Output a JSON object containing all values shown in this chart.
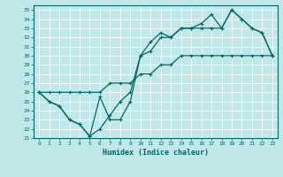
{
  "xlabel": "Humidex (Indice chaleur)",
  "bg_color": "#c0e8e8",
  "line_color": "#006868",
  "grid_color": "#a0d0d0",
  "xlim": [
    -0.5,
    23.5
  ],
  "ylim": [
    21,
    35.5
  ],
  "yticks": [
    21,
    22,
    23,
    24,
    25,
    26,
    27,
    28,
    29,
    30,
    31,
    32,
    33,
    34,
    35
  ],
  "xticks": [
    0,
    1,
    2,
    3,
    4,
    5,
    6,
    7,
    8,
    9,
    10,
    11,
    12,
    13,
    14,
    15,
    16,
    17,
    18,
    19,
    20,
    21,
    22,
    23
  ],
  "line1_x": [
    0,
    1,
    2,
    3,
    4,
    5,
    6,
    7,
    8,
    9,
    10,
    11,
    12,
    13,
    14,
    15,
    16,
    17,
    18,
    19,
    20,
    21,
    22,
    23
  ],
  "line1_y": [
    26,
    26,
    26,
    26,
    26,
    26,
    26,
    27,
    27,
    27,
    28,
    28,
    29,
    29,
    30,
    30,
    30,
    30,
    30,
    30,
    30,
    30,
    30,
    30
  ],
  "line2_x": [
    0,
    1,
    2,
    3,
    4,
    5,
    6,
    7,
    8,
    9,
    10,
    11,
    12,
    13,
    14,
    15,
    16,
    17,
    18,
    19,
    20,
    21,
    22,
    23
  ],
  "line2_y": [
    26,
    25,
    24.5,
    23,
    22.5,
    21.2,
    22,
    23.5,
    25,
    26,
    30,
    30.5,
    32,
    32,
    33,
    33,
    33,
    33,
    33,
    35,
    34,
    33,
    32.5,
    30
  ],
  "line3_x": [
    0,
    1,
    2,
    3,
    4,
    5,
    6,
    7,
    8,
    9,
    10,
    11,
    12,
    13,
    14,
    15,
    16,
    17,
    18,
    19,
    20,
    21,
    22,
    23
  ],
  "line3_y": [
    26,
    25,
    24.5,
    23,
    22.5,
    21.2,
    25.5,
    23,
    23,
    25,
    30,
    31.5,
    32.5,
    32,
    33,
    33,
    33.5,
    34.5,
    33,
    35,
    34,
    33,
    32.5,
    30
  ]
}
